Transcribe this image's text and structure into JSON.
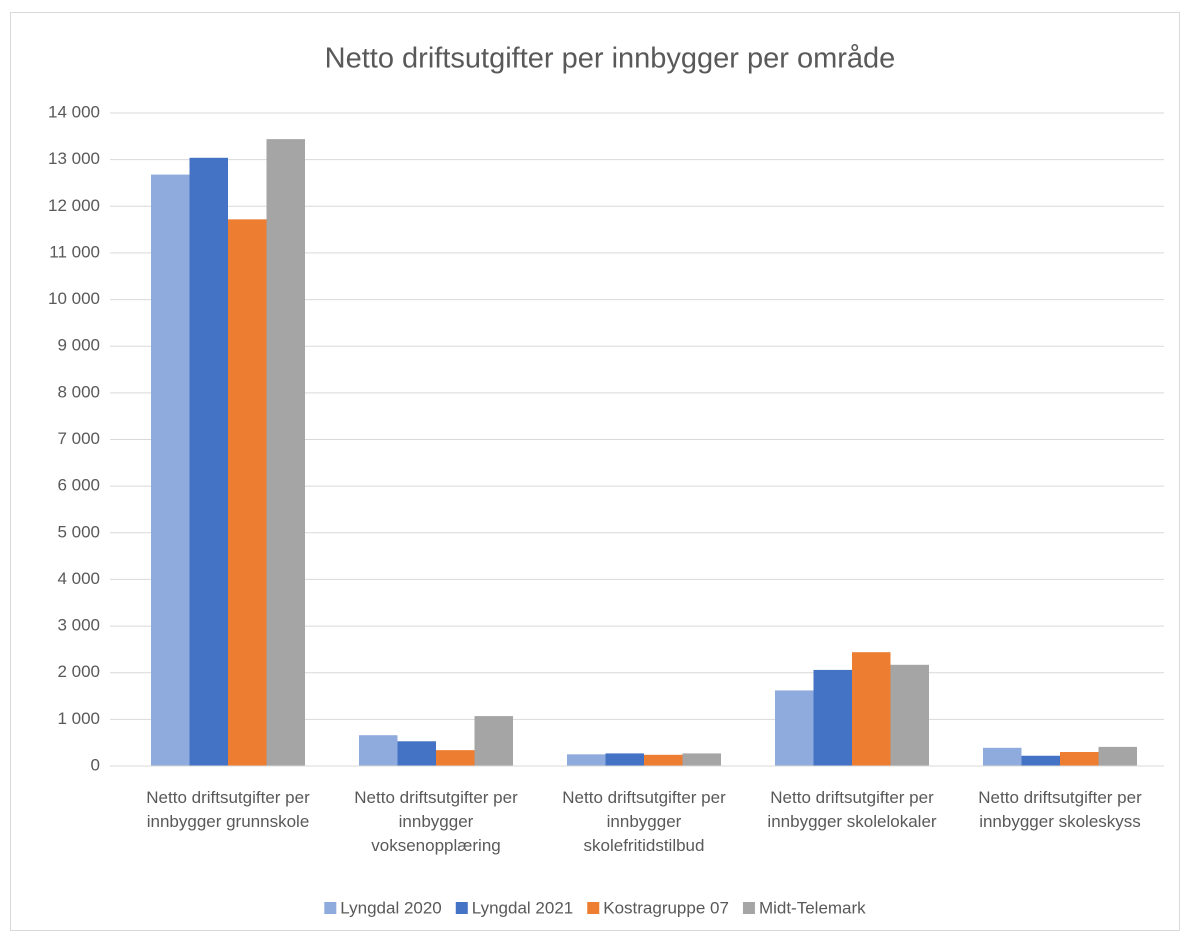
{
  "chart_data": {
    "type": "bar",
    "title": "Netto driftsutgifter per innbygger per område",
    "categories": [
      "Netto driftsutgifter per innbygger grunnskole",
      "Netto driftsutgifter per innbygger voksenopplæring",
      "Netto driftsutgifter per innbygger skolefritidstilbud",
      "Netto driftsutgifter per innbygger skolelokaler",
      "Netto driftsutgifter per innbygger skoleskyss"
    ],
    "series": [
      {
        "name": "Lyngdal 2020",
        "color": "#8faadc",
        "values": [
          12680,
          660,
          250,
          1620,
          390
        ]
      },
      {
        "name": "Lyngdal 2021",
        "color": "#4472c4",
        "values": [
          13040,
          530,
          270,
          2060,
          220
        ]
      },
      {
        "name": "Kostragruppe 07",
        "color": "#ed7d31",
        "values": [
          11720,
          340,
          240,
          2440,
          300
        ]
      },
      {
        "name": "Midt-Telemark",
        "color": "#a5a5a5",
        "values": [
          13440,
          1070,
          270,
          2170,
          410
        ]
      }
    ],
    "ylim": [
      0,
      14000
    ],
    "yticks": [
      0,
      {
        "value": 1000,
        "label": "1 000"
      },
      {
        "value": 2000,
        "label": "2 000"
      },
      {
        "value": 3000,
        "label": "3 000"
      },
      {
        "value": 4000,
        "label": "4 000"
      },
      {
        "value": 5000,
        "label": "5 000"
      },
      {
        "value": 6000,
        "label": "6 000"
      },
      {
        "value": 7000,
        "label": "7 000"
      },
      {
        "value": 8000,
        "label": "8 000"
      },
      {
        "value": 9000,
        "label": "9 000"
      },
      {
        "value": 10000,
        "label": "10 000"
      },
      {
        "value": 11000,
        "label": "11 000"
      },
      {
        "value": 12000,
        "label": "12 000"
      },
      {
        "value": 13000,
        "label": "13 000"
      },
      {
        "value": 14000,
        "label": "14 000"
      }
    ],
    "grid": true,
    "legend": "bottom"
  }
}
